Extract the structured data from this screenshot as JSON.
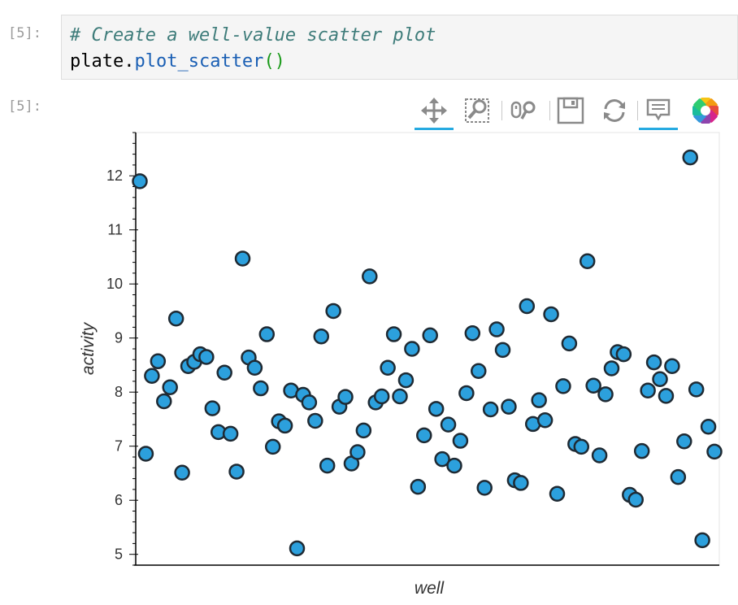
{
  "notebook": {
    "input_prompt": "[5]:",
    "output_prompt": "[5]:",
    "code_lines": {
      "comment": "# Create a well-value scatter plot",
      "obj": "plate.",
      "fn": "plot_scatter",
      "parens": "()"
    }
  },
  "toolbar": {
    "tools": [
      {
        "name": "pan-tool",
        "icon": "move-arrows-icon",
        "active": true
      },
      {
        "name": "box-zoom-tool",
        "icon": "box-zoom-icon",
        "active": false
      },
      {
        "name": "wheel-zoom-tool",
        "icon": "wheel-zoom-icon",
        "active": false
      },
      {
        "name": "save-tool",
        "icon": "save-disk-icon",
        "active": false
      },
      {
        "name": "reset-tool",
        "icon": "reset-arrows-icon",
        "active": false
      },
      {
        "name": "hover-tool",
        "icon": "hover-tooltip-icon",
        "active": true
      },
      {
        "name": "bokeh-logo",
        "icon": "bokeh-logo-icon",
        "active": false
      }
    ]
  },
  "chart_data": {
    "type": "scatter",
    "title": "",
    "xlabel": "well",
    "ylabel": "activity",
    "ylim": [
      4.8,
      12.8
    ],
    "yticks": [
      5,
      6,
      7,
      8,
      9,
      10,
      11,
      12
    ],
    "x_ticks_visible": false,
    "marker_color": "#2ca0dd",
    "marker_edge_color": "#1f2a33",
    "points": [
      {
        "x": 0,
        "y": 11.9
      },
      {
        "x": 1,
        "y": 6.86
      },
      {
        "x": 2,
        "y": 8.3
      },
      {
        "x": 3,
        "y": 8.57
      },
      {
        "x": 4,
        "y": 7.83
      },
      {
        "x": 5,
        "y": 8.09
      },
      {
        "x": 6,
        "y": 9.36
      },
      {
        "x": 7,
        "y": 6.51
      },
      {
        "x": 8,
        "y": 8.48
      },
      {
        "x": 9,
        "y": 8.56
      },
      {
        "x": 10,
        "y": 8.7
      },
      {
        "x": 11,
        "y": 8.65
      },
      {
        "x": 12,
        "y": 7.7
      },
      {
        "x": 13,
        "y": 7.26
      },
      {
        "x": 14,
        "y": 8.36
      },
      {
        "x": 15,
        "y": 7.23
      },
      {
        "x": 16,
        "y": 6.53
      },
      {
        "x": 17,
        "y": 10.47
      },
      {
        "x": 18,
        "y": 8.64
      },
      {
        "x": 19,
        "y": 8.45
      },
      {
        "x": 20,
        "y": 8.07
      },
      {
        "x": 21,
        "y": 9.07
      },
      {
        "x": 22,
        "y": 6.99
      },
      {
        "x": 23,
        "y": 7.46
      },
      {
        "x": 24,
        "y": 7.38
      },
      {
        "x": 25,
        "y": 8.03
      },
      {
        "x": 26,
        "y": 5.11
      },
      {
        "x": 27,
        "y": 7.95
      },
      {
        "x": 28,
        "y": 7.81
      },
      {
        "x": 29,
        "y": 7.47
      },
      {
        "x": 30,
        "y": 9.03
      },
      {
        "x": 31,
        "y": 6.64
      },
      {
        "x": 32,
        "y": 9.5
      },
      {
        "x": 33,
        "y": 7.73
      },
      {
        "x": 34,
        "y": 7.91
      },
      {
        "x": 35,
        "y": 6.68
      },
      {
        "x": 36,
        "y": 6.89
      },
      {
        "x": 37,
        "y": 7.29
      },
      {
        "x": 38,
        "y": 10.14
      },
      {
        "x": 39,
        "y": 7.81
      },
      {
        "x": 40,
        "y": 7.92
      },
      {
        "x": 41,
        "y": 8.45
      },
      {
        "x": 42,
        "y": 9.07
      },
      {
        "x": 43,
        "y": 7.92
      },
      {
        "x": 44,
        "y": 8.22
      },
      {
        "x": 45,
        "y": 8.8
      },
      {
        "x": 46,
        "y": 6.25
      },
      {
        "x": 47,
        "y": 7.2
      },
      {
        "x": 48,
        "y": 9.05
      },
      {
        "x": 49,
        "y": 7.69
      },
      {
        "x": 50,
        "y": 6.76
      },
      {
        "x": 51,
        "y": 7.4
      },
      {
        "x": 52,
        "y": 6.64
      },
      {
        "x": 53,
        "y": 7.1
      },
      {
        "x": 54,
        "y": 7.98
      },
      {
        "x": 55,
        "y": 9.09
      },
      {
        "x": 56,
        "y": 8.39
      },
      {
        "x": 57,
        "y": 6.23
      },
      {
        "x": 58,
        "y": 7.68
      },
      {
        "x": 59,
        "y": 9.16
      },
      {
        "x": 60,
        "y": 8.78
      },
      {
        "x": 61,
        "y": 7.73
      },
      {
        "x": 62,
        "y": 6.37
      },
      {
        "x": 63,
        "y": 6.32
      },
      {
        "x": 64,
        "y": 9.59
      },
      {
        "x": 65,
        "y": 7.41
      },
      {
        "x": 66,
        "y": 7.85
      },
      {
        "x": 67,
        "y": 7.48
      },
      {
        "x": 68,
        "y": 9.44
      },
      {
        "x": 69,
        "y": 6.12
      },
      {
        "x": 70,
        "y": 8.11
      },
      {
        "x": 71,
        "y": 8.9
      },
      {
        "x": 72,
        "y": 7.04
      },
      {
        "x": 73,
        "y": 6.99
      },
      {
        "x": 74,
        "y": 10.42
      },
      {
        "x": 75,
        "y": 8.12
      },
      {
        "x": 76,
        "y": 6.83
      },
      {
        "x": 77,
        "y": 7.96
      },
      {
        "x": 78,
        "y": 8.44
      },
      {
        "x": 79,
        "y": 8.74
      },
      {
        "x": 80,
        "y": 8.7
      },
      {
        "x": 81,
        "y": 6.1
      },
      {
        "x": 82,
        "y": 6.01
      },
      {
        "x": 83,
        "y": 6.91
      },
      {
        "x": 84,
        "y": 8.03
      },
      {
        "x": 85,
        "y": 8.55
      },
      {
        "x": 86,
        "y": 8.24
      },
      {
        "x": 87,
        "y": 7.93
      },
      {
        "x": 88,
        "y": 8.48
      },
      {
        "x": 89,
        "y": 6.43
      },
      {
        "x": 90,
        "y": 7.09
      },
      {
        "x": 91,
        "y": 12.34
      },
      {
        "x": 92,
        "y": 8.05
      },
      {
        "x": 93,
        "y": 5.26
      },
      {
        "x": 94,
        "y": 7.36
      },
      {
        "x": 95,
        "y": 6.9
      }
    ]
  }
}
